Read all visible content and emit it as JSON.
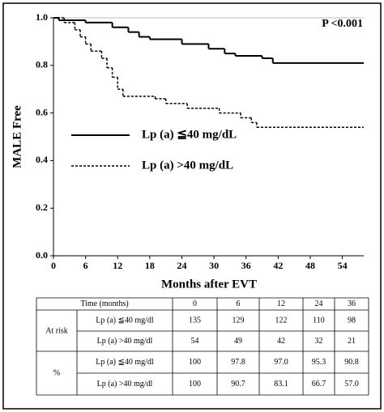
{
  "chart_data": {
    "type": "step",
    "annotation": "P <0.001",
    "xlabel": "Months after EVT",
    "ylabel": "MALE Free",
    "xlim": [
      0,
      58
    ],
    "xticks": [
      0,
      6,
      12,
      18,
      24,
      30,
      36,
      42,
      48,
      54
    ],
    "ylim": [
      0,
      1
    ],
    "yticks": [
      {
        "value": 0,
        "label": "0.0"
      },
      {
        "value": 0.2,
        "label": "0.2"
      },
      {
        "value": 0.4,
        "label": "0.4"
      },
      {
        "value": 0.6,
        "label": "0.6"
      },
      {
        "value": 0.8,
        "label": "0.8"
      },
      {
        "value": 1,
        "label": "1.0"
      }
    ],
    "grid": false,
    "series": [
      {
        "name": "Lp (a) ≦40 mg/dL",
        "color": "#000000",
        "dashed": false,
        "x": [
          0,
          1,
          6,
          11,
          14,
          16,
          18,
          24,
          29,
          32,
          34,
          39,
          41
        ],
        "values": [
          1.0,
          0.99,
          0.98,
          0.96,
          0.94,
          0.92,
          0.91,
          0.89,
          0.87,
          0.85,
          0.84,
          0.83,
          0.81
        ]
      },
      {
        "name": "Lp (a) >40 mg/dL",
        "color": "#000000",
        "dashed": true,
        "x": [
          0,
          2,
          4,
          5,
          6,
          7,
          9,
          10,
          11,
          12,
          13,
          19,
          21,
          25,
          31,
          35,
          37,
          38
        ],
        "values": [
          1.0,
          0.98,
          0.95,
          0.92,
          0.89,
          0.86,
          0.83,
          0.79,
          0.75,
          0.7,
          0.67,
          0.66,
          0.64,
          0.62,
          0.6,
          0.58,
          0.56,
          0.54
        ]
      }
    ]
  },
  "table": {
    "header": [
      "Time (months)",
      "0",
      "6",
      "12",
      "24",
      "36"
    ],
    "groups": [
      {
        "label": "At risk",
        "rows": [
          [
            "Lp (a) ≦40 mg/dl",
            "135",
            "129",
            "122",
            "110",
            "98"
          ],
          [
            "Lp (a) >40 mg/dl",
            "54",
            "49",
            "42",
            "32",
            "21"
          ]
        ]
      },
      {
        "label": "%",
        "rows": [
          [
            "Lp (a) ≦40 mg/dl",
            "100",
            "97.8",
            "97.0",
            "95.3",
            "90.8"
          ],
          [
            "Lp (a) >40 mg/dl",
            "100",
            "90.7",
            "83.1",
            "66.7",
            "57.0"
          ]
        ]
      }
    ]
  }
}
